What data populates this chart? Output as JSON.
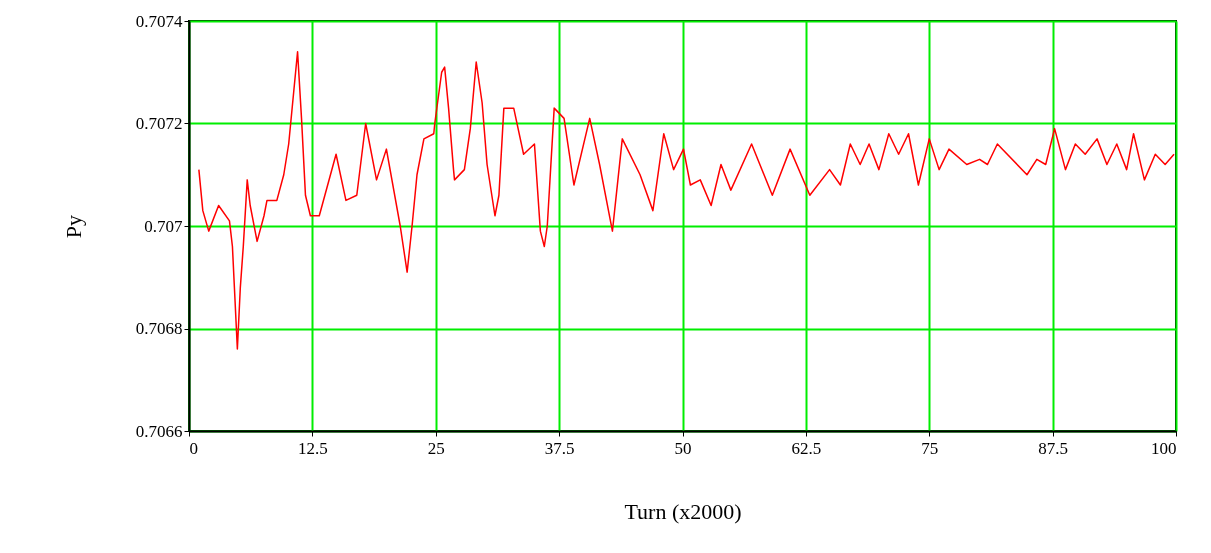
{
  "chart_data": {
    "type": "line",
    "xlabel": "Turn (x2000)",
    "ylabel": "Py",
    "x": [
      1.0,
      1.4,
      2.0,
      3.0,
      4.1,
      4.4,
      4.6,
      4.9,
      5.2,
      5.5,
      5.9,
      6.2,
      6.9,
      7.6,
      7.9,
      8.9,
      9.6,
      10.1,
      10.6,
      11.0,
      11.4,
      11.8,
      12.3,
      13.2,
      14.9,
      15.9,
      17.0,
      17.9,
      19.0,
      20.0,
      21.4,
      22.1,
      22.6,
      23.1,
      23.8,
      24.8,
      24.9,
      25.6,
      25.9,
      26.3,
      26.8,
      26.9,
      27.9,
      28.5,
      29.1,
      29.7,
      30.2,
      31.0,
      31.4,
      31.9,
      32.9,
      33.9,
      35.0,
      35.6,
      36.0,
      36.3,
      37.0,
      38.0,
      39.0,
      40.6,
      41.6,
      42.9,
      43.9,
      45.7,
      47.0,
      48.1,
      49.1,
      50.1,
      50.8,
      51.8,
      52.9,
      53.9,
      54.9,
      57.0,
      59.1,
      60.9,
      62.9,
      64.9,
      66.0,
      67.0,
      68.0,
      68.9,
      69.9,
      70.9,
      71.9,
      72.9,
      73.9,
      75.0,
      76.0,
      77.0,
      78.8,
      80.1,
      80.9,
      81.9,
      84.9,
      85.9,
      86.8,
      87.7,
      88.8,
      89.8,
      90.8,
      92.0,
      93.0,
      94.0,
      95.0,
      95.7,
      96.8,
      97.9,
      98.9,
      99.8
    ],
    "series": [
      {
        "color": "#ff0000",
        "values": [
          0.70711,
          0.70703,
          0.70699,
          0.70704,
          0.70701,
          0.70696,
          0.70688,
          0.70676,
          0.70688,
          0.70696,
          0.70709,
          0.70704,
          0.70697,
          0.70702,
          0.70705,
          0.70705,
          0.7071,
          0.70716,
          0.70726,
          0.70734,
          0.70721,
          0.70706,
          0.70702,
          0.70702,
          0.70714,
          0.70705,
          0.70706,
          0.7072,
          0.70709,
          0.70715,
          0.707,
          0.70691,
          0.707,
          0.7071,
          0.70717,
          0.70718,
          0.7072,
          0.7073,
          0.70731,
          0.70723,
          0.70711,
          0.70709,
          0.70711,
          0.70719,
          0.70732,
          0.70724,
          0.70712,
          0.70702,
          0.70706,
          0.70723,
          0.70723,
          0.70714,
          0.70716,
          0.70699,
          0.70696,
          0.707,
          0.70723,
          0.70721,
          0.70708,
          0.70721,
          0.70712,
          0.70699,
          0.70717,
          0.7071,
          0.70703,
          0.70718,
          0.70711,
          0.70715,
          0.70708,
          0.70709,
          0.70704,
          0.70712,
          0.70707,
          0.70716,
          0.70706,
          0.70715,
          0.70706,
          0.70711,
          0.70708,
          0.70716,
          0.70712,
          0.70716,
          0.70711,
          0.70718,
          0.70714,
          0.70718,
          0.70708,
          0.70717,
          0.70711,
          0.70715,
          0.70712,
          0.70713,
          0.70712,
          0.70716,
          0.7071,
          0.70713,
          0.70712,
          0.70719,
          0.70711,
          0.70716,
          0.70714,
          0.70717,
          0.70712,
          0.70716,
          0.70711,
          0.70718,
          0.70709,
          0.70714,
          0.70712,
          0.70714
        ]
      }
    ],
    "xlim": [
      0,
      100
    ],
    "xticks": [
      0,
      12.5,
      25,
      37.5,
      50,
      62.5,
      75,
      87.5,
      100
    ],
    "ylim": [
      0.7066,
      0.7074
    ],
    "yticks": [
      0.7066,
      0.7068,
      0.707,
      0.7072,
      0.7074
    ],
    "grid": true,
    "marker": "none",
    "line_style": "solid"
  }
}
